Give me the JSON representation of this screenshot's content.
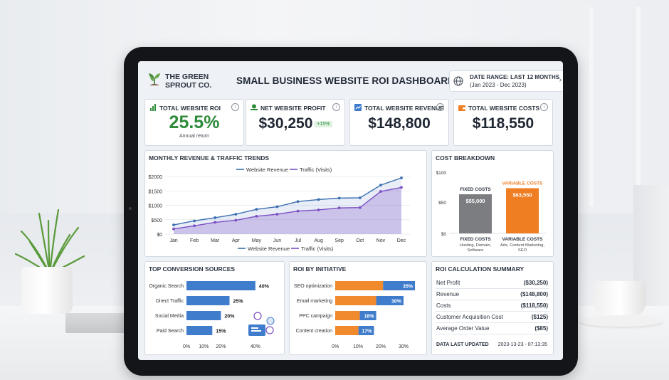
{
  "brand": {
    "line1": "THE GREEN",
    "line2": "SPROUT CO."
  },
  "dashboard_title": "SMALL BUSINESS WEBSITE ROI DASHBOARD",
  "date_range": {
    "label": "DATE RANGE: LAST 12 MONTHS",
    "range": "(Jan 2023 - Dec 2023)"
  },
  "kpis": [
    {
      "label": "TOTAL WEBSITE ROI",
      "value": "25.5%",
      "sub": "Annual return",
      "color": "#2e8b3a"
    },
    {
      "label": "NET WEBSITE PROFIT",
      "value": "$30,250",
      "badge": "+15%"
    },
    {
      "label": "TOTAL WEBSITE REVENUE",
      "value": "$148,800"
    },
    {
      "label": "TOTAL WEBSITE COSTS",
      "value": "$118,550"
    }
  ],
  "info_glyph": "i",
  "colors": {
    "revenue": "#3b6fb0",
    "traffic": "#7a4fc0",
    "fixed": "#7b7d80",
    "variable": "#ef7d22",
    "blue": "#3f7ccc",
    "orange": "#f08a2c",
    "green": "#2e8b3a"
  },
  "trends": {
    "title": "MONTHLY REVENUE & TRAFFIC TRENDS",
    "legend_revenue": "Website Revenue",
    "legend_traffic": "Traffic (Visits)"
  },
  "chart_data": [
    {
      "type": "line",
      "title": "MONTHLY REVENUE & TRAFFIC TRENDS",
      "x": [
        "Jan",
        "Feb",
        "Mar",
        "Apr",
        "May",
        "Jun",
        "Jul",
        "Aug",
        "Sep",
        "Oct",
        "Nov",
        "Dec"
      ],
      "yticks": [
        "$0",
        "$500",
        "$1000",
        "$1500",
        "$2000"
      ],
      "ylim": [
        0,
        2000
      ],
      "series": [
        {
          "name": "Website Revenue",
          "values": [
            320,
            460,
            570,
            690,
            860,
            950,
            1130,
            1200,
            1250,
            1260,
            1700,
            1950
          ]
        },
        {
          "name": "Traffic (Visits)",
          "values": [
            180,
            290,
            410,
            480,
            620,
            690,
            800,
            840,
            910,
            920,
            1480,
            1620
          ]
        }
      ],
      "legend": "top and bottom"
    },
    {
      "type": "bar",
      "title": "COST BREAKDOWN",
      "categories": [
        "FIXED COSTS",
        "VARIABLE COSTS"
      ],
      "values": [
        55000,
        63550
      ],
      "data_labels": [
        "$55,000",
        "$63,550"
      ],
      "top_labels": [
        "FIXED COSTS",
        "VARIABLE COSTS"
      ],
      "descriptions": [
        [
          "Hosting, Domain,",
          "Software"
        ],
        [
          "Ads, Content Marketing,",
          "SEO"
        ]
      ],
      "yticks": [
        "$100",
        "$50",
        "$0"
      ]
    },
    {
      "type": "bar",
      "title": "TOP CONVERSION SOURCES",
      "categories": [
        "Organic Search",
        "Direct Traffic",
        "Social Media",
        "Paid Search"
      ],
      "values": [
        40,
        25,
        20,
        15
      ],
      "data_labels": [
        "40%",
        "25%",
        "20%",
        "15%"
      ],
      "xticks": [
        "0%",
        "10%",
        "20%",
        "40%"
      ]
    },
    {
      "type": "bar",
      "title": "ROI BY INITIATIVE",
      "categories": [
        "SEO optimization",
        "Email marketing",
        "PPC campaign",
        "Content creation"
      ],
      "values": [
        35,
        30,
        18,
        17
      ],
      "data_labels": [
        "35%",
        "30%",
        "18%",
        "17%"
      ],
      "xticks": [
        "0%",
        "10%",
        "20%",
        "30%"
      ]
    }
  ],
  "roi_summary": {
    "title": "ROI CALCULATION SUMMARY",
    "rows": [
      {
        "k": "Net Profit",
        "v": "($30,250)"
      },
      {
        "k": "Revenue",
        "v": "($148,800)"
      },
      {
        "k": "Costs",
        "v": "($118,550)"
      },
      {
        "k": "Customer Acquisition Cost",
        "v": "($125)"
      },
      {
        "k": "Average Order Value",
        "v": "($85)"
      }
    ],
    "last_updated_label": "DATA LAST UPDATED",
    "last_updated_value": "2023-13-23 - 07:13:35"
  }
}
